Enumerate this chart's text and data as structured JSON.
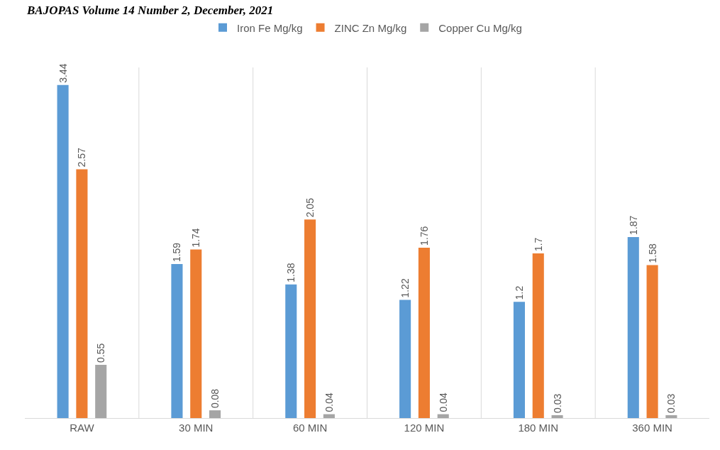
{
  "chart_data": {
    "type": "bar",
    "annotations": [
      "BAJOPAS Volume 14 Number 2, December, 2021"
    ],
    "categories": [
      "RAW",
      "30 MIN",
      "60 MIN",
      "120 MIN",
      "180 MIN",
      "360 MIN"
    ],
    "series": [
      {
        "name": "Iron Fe Mg/kg",
        "color": "#5b9bd5",
        "values": [
          3.44,
          1.59,
          1.38,
          1.22,
          1.2,
          1.87
        ]
      },
      {
        "name": "ZINC Zn Mg/kg",
        "color": "#ed7d31",
        "values": [
          2.57,
          1.74,
          2.05,
          1.76,
          1.7,
          1.58
        ]
      },
      {
        "name": "Copper Cu Mg/kg",
        "color": "#a5a5a5",
        "values": [
          0.55,
          0.08,
          0.04,
          0.04,
          0.03,
          0.03
        ]
      }
    ],
    "data_labels": true,
    "grid": "x",
    "legend": "top"
  }
}
